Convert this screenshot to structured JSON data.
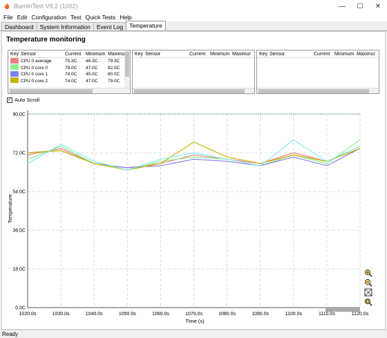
{
  "window": {
    "title": "BurnInTest V9.2 (1002)"
  },
  "menu": [
    "File",
    "Edit",
    "Configuration",
    "Test",
    "Quick Tests",
    "Help"
  ],
  "tabs": [
    "Dashboard",
    "System Information",
    "Event Log",
    "Temperature"
  ],
  "panel_title": "Temperature monitoring",
  "grid_headers": [
    "Key",
    "Sensor",
    "Current",
    "Minimum",
    "Maximum"
  ],
  "grid_rows": [
    {
      "sensor": "CPU 0 average",
      "current": "75.3C",
      "minimum": "46.3C",
      "maximum": "79.3C",
      "color": "#f08080"
    },
    {
      "sensor": "CPU 0 core 0",
      "current": "78.0C",
      "minimum": "47.0C",
      "maximum": "82.0C",
      "color": "#90ee90"
    },
    {
      "sensor": "CPU 0 core 1",
      "current": "74.0C",
      "minimum": "45.0C",
      "maximum": "80.0C",
      "color": "#8080f0"
    },
    {
      "sensor": "CPU 0 core 2",
      "current": "74.0C",
      "minimum": "47.0C",
      "maximum": "79.0C",
      "color": "#c8b400"
    }
  ],
  "autoscroll_label": "Auto Scroll",
  "status": "Ready",
  "chart_data": {
    "type": "line",
    "xlabel": "Time (s)",
    "ylabel": "Temperature",
    "x_ticks": [
      "1020.0s",
      "1030.0s",
      "1040.0s",
      "1050.0s",
      "1060.0s",
      "1070.0s",
      "1080.0s",
      "1090.0s",
      "1100.0s",
      "1110.0s",
      "1120.0s"
    ],
    "y_ticks": [
      "0.0C",
      "18.0C",
      "36.0C",
      "54.0C",
      "72.0C",
      "90.0C"
    ],
    "ylim": [
      0,
      90
    ],
    "x": [
      1020,
      1030,
      1040,
      1050,
      1060,
      1070,
      1080,
      1090,
      1100,
      1110,
      1120
    ],
    "reference_line": 90,
    "grid": true,
    "series": [
      {
        "name": "CPU 0 average",
        "color": "#f08080",
        "values": [
          71,
          74,
          67,
          65,
          67,
          71,
          69,
          67,
          72,
          68,
          75
        ]
      },
      {
        "name": "CPU 0 core 0",
        "color": "#90ee90",
        "values": [
          69,
          75,
          67,
          64,
          68,
          70,
          69,
          66,
          71,
          67,
          78
        ]
      },
      {
        "name": "CPU 0 core 1",
        "color": "#8080f0",
        "values": [
          72,
          73,
          67,
          65,
          66,
          69,
          68,
          66,
          70,
          66,
          74
        ]
      },
      {
        "name": "CPU 0 core 2",
        "color": "#c8b400",
        "values": [
          72,
          73,
          67,
          64,
          67,
          77,
          70,
          67,
          71,
          68,
          74
        ]
      },
      {
        "name": "",
        "color": "#80f0f0",
        "values": [
          67,
          76,
          68,
          64,
          69,
          72,
          69,
          66,
          78,
          68,
          75
        ]
      }
    ]
  }
}
